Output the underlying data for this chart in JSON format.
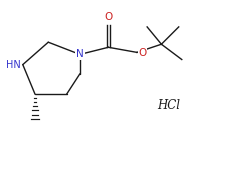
{
  "background_color": "#ffffff",
  "line_color": "#1a1a1a",
  "text_color": "#1a1a1a",
  "N_color": "#3333cc",
  "O_color": "#cc2222",
  "HCl_text": "HCl",
  "figsize": [
    2.27,
    1.7
  ],
  "dpi": 100,
  "xlim": [
    0,
    11
  ],
  "ylim": [
    0,
    8
  ]
}
